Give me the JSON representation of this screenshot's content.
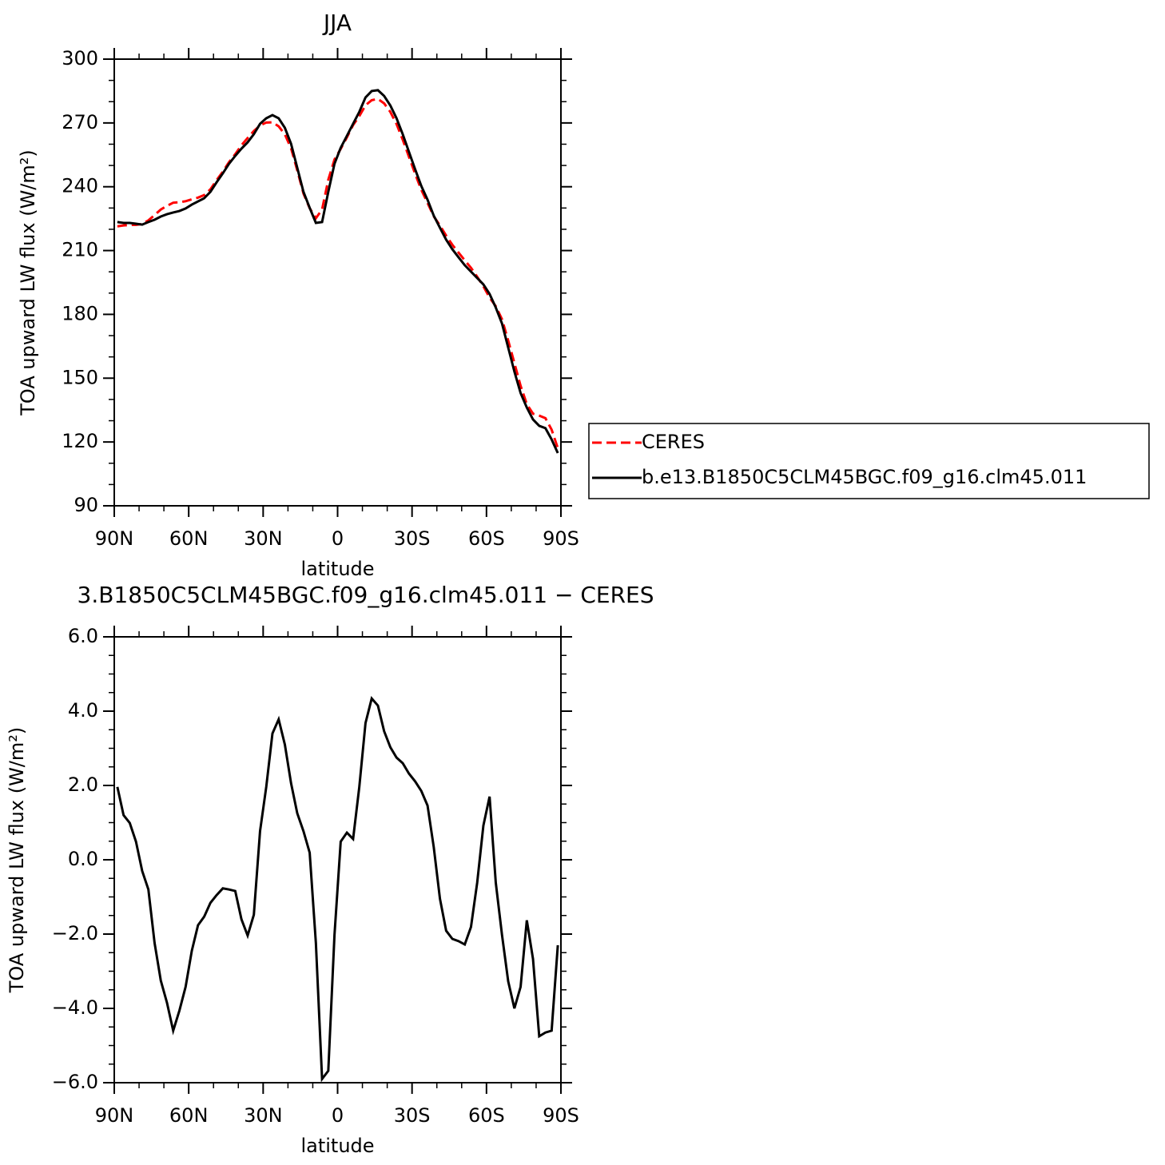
{
  "chart_data": [
    {
      "type": "line",
      "title": "JJA",
      "xlabel": "latitude",
      "ylabel": "TOA upward LW flux (W/m²)",
      "x": [
        88.75,
        86.25,
        83.75,
        81.25,
        78.75,
        76.25,
        73.75,
        71.25,
        68.75,
        66.25,
        63.75,
        61.25,
        58.75,
        56.25,
        53.75,
        51.25,
        48.75,
        46.25,
        43.75,
        41.25,
        38.75,
        36.25,
        33.75,
        31.25,
        28.75,
        26.25,
        23.75,
        21.25,
        18.75,
        16.25,
        13.75,
        11.25,
        8.75,
        6.25,
        3.75,
        1.25,
        -1.25,
        -3.75,
        -6.25,
        -8.75,
        -11.25,
        -13.75,
        -16.25,
        -18.75,
        -21.25,
        -23.75,
        -26.25,
        -28.75,
        -31.25,
        -33.75,
        -36.25,
        -38.75,
        -41.25,
        -43.75,
        -46.25,
        -48.75,
        -51.25,
        -53.75,
        -56.25,
        -58.75,
        -61.25,
        -63.75,
        -66.25,
        -68.75,
        -71.25,
        -73.75,
        -76.25,
        -78.75,
        -81.25,
        -83.75,
        -86.25,
        -88.75
      ],
      "series": [
        {
          "name": "CERES",
          "color": "#ff0000",
          "dash": "dashed",
          "values": [
            221.4,
            221.8,
            222.0,
            222.1,
            222.5,
            224.2,
            226.7,
            229.3,
            231.0,
            232.5,
            232.7,
            233.2,
            234.1,
            234.9,
            236.1,
            238.8,
            243.1,
            247.1,
            251.6,
            255.3,
            259.5,
            262.9,
            266.2,
            268.8,
            270.2,
            270.3,
            268.4,
            264.6,
            258.1,
            247.7,
            236.8,
            229.9,
            225.2,
            229.3,
            243.3,
            252.8,
            257.8,
            263.2,
            269.0,
            273.2,
            278.3,
            280.7,
            281.3,
            279.2,
            275.2,
            269.5,
            262.1,
            254.1,
            246.1,
            238.5,
            232.4,
            226.1,
            221.8,
            217.0,
            212.7,
            209.0,
            205.4,
            201.9,
            197.7,
            193.2,
            187.9,
            183.8,
            177.7,
            167.7,
            157.1,
            146.4,
            137.8,
            133.3,
            132.4,
            131.2,
            125.8,
            117.1
          ]
        },
        {
          "name": "b.e13.B1850C5CLM45BGC.f09_g16.clm45.011",
          "color": "#000000",
          "dash": "solid",
          "values": [
            223.4,
            223.0,
            223.0,
            222.6,
            222.2,
            223.4,
            224.5,
            226.0,
            227.1,
            227.9,
            228.6,
            229.8,
            231.6,
            233.1,
            234.6,
            237.6,
            242.1,
            246.3,
            250.8,
            254.5,
            257.9,
            260.9,
            264.7,
            269.6,
            272.2,
            273.7,
            272.2,
            267.7,
            260.2,
            248.9,
            237.6,
            230.1,
            223.0,
            223.4,
            237.6,
            250.8,
            258.3,
            263.9,
            269.6,
            275.2,
            282.0,
            285.0,
            285.4,
            282.7,
            278.2,
            272.2,
            264.7,
            256.4,
            248.2,
            240.3,
            233.9,
            226.4,
            220.7,
            215.1,
            210.6,
            206.8,
            203.1,
            200.1,
            197.1,
            194.1,
            189.6,
            183.2,
            175.7,
            164.4,
            153.1,
            143.0,
            136.2,
            130.6,
            127.6,
            126.5,
            121.2,
            114.8
          ]
        }
      ],
      "xlim": [
        90,
        -90
      ],
      "xticks": [
        {
          "value": 90,
          "label": "90N"
        },
        {
          "value": 60,
          "label": "60N"
        },
        {
          "value": 30,
          "label": "30N"
        },
        0,
        {
          "value": -30,
          "label": "30S"
        },
        {
          "value": -60,
          "label": "60S"
        },
        {
          "value": -90,
          "label": "90S"
        }
      ],
      "ylim": [
        90,
        300
      ],
      "yticks": [
        90,
        120,
        150,
        180,
        210,
        240,
        270,
        300
      ],
      "legend": "right"
    },
    {
      "type": "line",
      "title": "3.B1850C5CLM45BGC.f09_g16.clm45.011 − CERES",
      "xlabel": "latitude",
      "ylabel": "TOA upward LW flux (W/m²)",
      "x": [
        88.75,
        86.25,
        83.75,
        81.25,
        78.75,
        76.25,
        73.75,
        71.25,
        68.75,
        66.25,
        63.75,
        61.25,
        58.75,
        56.25,
        53.75,
        51.25,
        48.75,
        46.25,
        43.75,
        41.25,
        38.75,
        36.25,
        33.75,
        31.25,
        28.75,
        26.25,
        23.75,
        21.25,
        18.75,
        16.25,
        13.75,
        11.25,
        8.75,
        6.25,
        3.75,
        1.25,
        -1.25,
        -3.75,
        -6.25,
        -8.75,
        -11.25,
        -13.75,
        -16.25,
        -18.75,
        -21.25,
        -23.75,
        -26.25,
        -28.75,
        -31.25,
        -33.75,
        -36.25,
        -38.75,
        -41.25,
        -43.75,
        -46.25,
        -48.75,
        -51.25,
        -53.75,
        -56.25,
        -58.75,
        -61.25,
        -63.75,
        -66.25,
        -68.75,
        -71.25,
        -73.75,
        -76.25,
        -78.75,
        -81.25,
        -83.75,
        -86.25,
        -88.75
      ],
      "color": "#000000",
      "values": [
        1.96,
        1.2,
        0.99,
        0.49,
        -0.3,
        -0.8,
        -2.24,
        -3.25,
        -3.85,
        -4.6,
        -4.06,
        -3.42,
        -2.45,
        -1.76,
        -1.53,
        -1.16,
        -0.95,
        -0.77,
        -0.8,
        -0.84,
        -1.6,
        -2.04,
        -1.48,
        0.77,
        1.96,
        3.4,
        3.78,
        3.1,
        2.06,
        1.25,
        0.77,
        0.19,
        -2.24,
        -5.9,
        -5.68,
        -2.02,
        0.49,
        0.73,
        0.56,
        1.96,
        3.68,
        4.34,
        4.15,
        3.46,
        3.03,
        2.75,
        2.6,
        2.32,
        2.11,
        1.85,
        1.46,
        0.34,
        -1.05,
        -1.91,
        -2.13,
        -2.19,
        -2.28,
        -1.81,
        -0.62,
        0.92,
        1.7,
        -0.62,
        -2.02,
        -3.27,
        -4.0,
        -3.42,
        -1.63,
        -2.67,
        -4.75,
        -4.65,
        -4.6,
        -2.3
      ],
      "xlim": [
        90,
        -90
      ],
      "xticks": [
        {
          "value": 90,
          "label": "90N"
        },
        {
          "value": 60,
          "label": "60N"
        },
        {
          "value": 30,
          "label": "30N"
        },
        0,
        {
          "value": -30,
          "label": "30S"
        },
        {
          "value": -60,
          "label": "60S"
        },
        {
          "value": -90,
          "label": "90S"
        }
      ],
      "ylim": [
        -6,
        6
      ],
      "yticks": [
        {
          "value": -6,
          "label": "−6.0"
        },
        {
          "value": -4,
          "label": "−4.0"
        },
        {
          "value": -2,
          "label": "−2.0"
        },
        {
          "value": 0,
          "label": "0.0"
        },
        {
          "value": 2,
          "label": "2.0"
        },
        {
          "value": 4,
          "label": "4.0"
        },
        {
          "value": 6,
          "label": "6.0"
        }
      ]
    }
  ]
}
